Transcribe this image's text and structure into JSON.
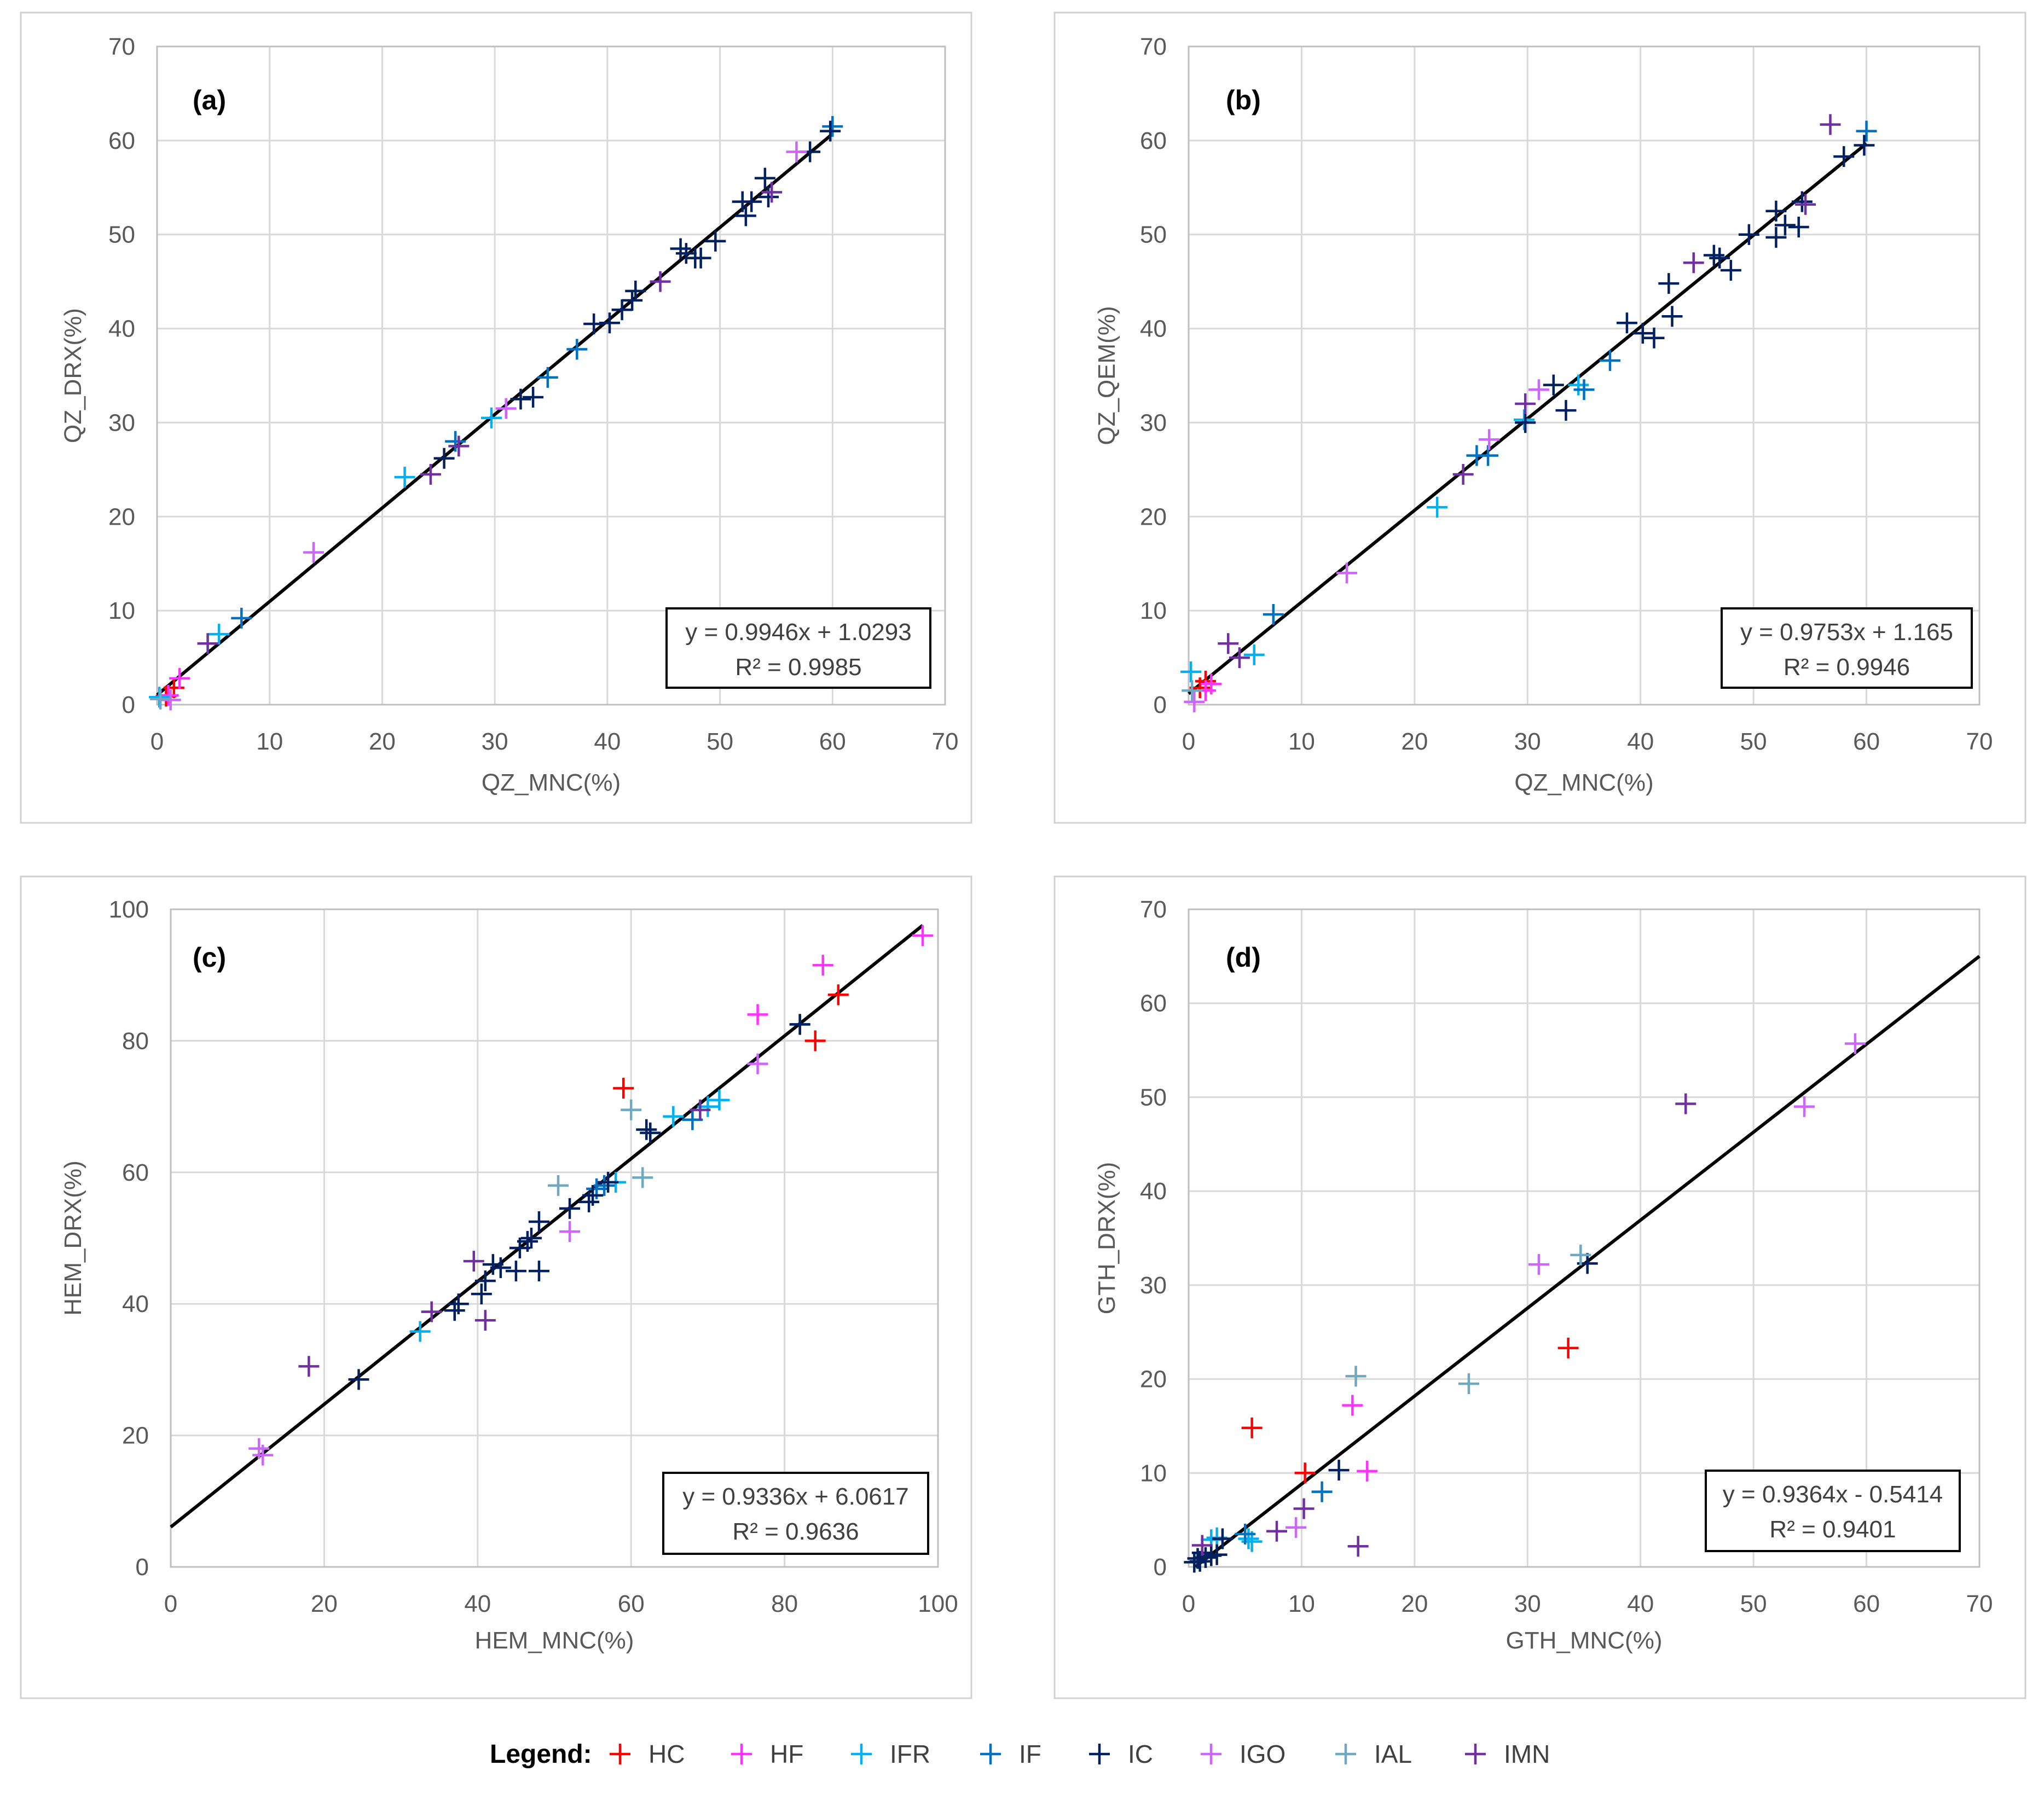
{
  "legend": {
    "title": "Legend:",
    "groups": [
      {
        "id": "HC",
        "label": "HC",
        "color": "#ff0000"
      },
      {
        "id": "HF",
        "label": "HF",
        "color": "#ff33ff"
      },
      {
        "id": "IFR",
        "label": "IFR",
        "color": "#00b0f0"
      },
      {
        "id": "IF",
        "label": "IF",
        "color": "#0070c0"
      },
      {
        "id": "IC",
        "label": "IC",
        "color": "#002060"
      },
      {
        "id": "IGO",
        "label": "IGO",
        "color": "#cc66ff"
      },
      {
        "id": "IAL",
        "label": "IAL",
        "color": "#6fa8c0"
      },
      {
        "id": "IMN",
        "label": "IMN",
        "color": "#7030a0"
      }
    ]
  },
  "chart_data": [
    {
      "type": "scatter",
      "panel": "(a)",
      "xlabel": "QZ_MNC(%)",
      "ylabel": "QZ_DRX(%)",
      "xlim": [
        0,
        70
      ],
      "ylim": [
        0,
        70
      ],
      "xticks": [
        0,
        10,
        20,
        30,
        40,
        50,
        60,
        70
      ],
      "yticks": [
        0,
        10,
        20,
        30,
        40,
        50,
        60,
        70
      ],
      "trendline": {
        "slope": 0.9946,
        "intercept": 1.0293,
        "x_range": [
          0,
          60
        ]
      },
      "equation": "y = 0.9946x + 1.0293",
      "r2": "R² = 0.9985",
      "series": [
        {
          "group": "HC",
          "points": [
            [
              1.5,
              1.8
            ],
            [
              0.8,
              0.9
            ]
          ]
        },
        {
          "group": "HF",
          "points": [
            [
              1.0,
              1.0
            ],
            [
              2.0,
              2.8
            ]
          ]
        },
        {
          "group": "IFR",
          "points": [
            [
              0.2,
              0.8
            ],
            [
              5.5,
              7.5
            ],
            [
              22.0,
              24.2
            ],
            [
              29.7,
              30.5
            ]
          ]
        },
        {
          "group": "IF",
          "points": [
            [
              7.5,
              9.2
            ],
            [
              26.5,
              28.0
            ],
            [
              34.7,
              34.8
            ],
            [
              37.3,
              37.8
            ],
            [
              60.0,
              61.5
            ]
          ]
        },
        {
          "group": "IC",
          "points": [
            [
              25.5,
              26.2
            ],
            [
              32.3,
              32.5
            ],
            [
              33.4,
              32.7
            ],
            [
              38.8,
              40.5
            ],
            [
              40.2,
              40.6
            ],
            [
              41.3,
              42.0
            ],
            [
              42.5,
              44.0
            ],
            [
              42.2,
              43.0
            ],
            [
              46.5,
              48.5
            ],
            [
              47.0,
              48.0
            ],
            [
              48.3,
              47.5
            ],
            [
              47.8,
              47.5
            ],
            [
              49.6,
              49.3
            ],
            [
              52.0,
              53.5
            ],
            [
              52.3,
              52.0
            ],
            [
              52.8,
              53.5
            ],
            [
              54.0,
              56.0
            ],
            [
              54.3,
              54.0
            ],
            [
              58.0,
              58.8
            ],
            [
              59.8,
              61.0
            ]
          ]
        },
        {
          "group": "IGO",
          "points": [
            [
              13.9,
              16.2
            ],
            [
              31.0,
              31.5
            ],
            [
              56.8,
              58.8
            ],
            [
              1.2,
              0.5
            ]
          ]
        },
        {
          "group": "IAL",
          "points": [
            [
              0.3,
              0.6
            ]
          ]
        },
        {
          "group": "IMN",
          "points": [
            [
              4.5,
              6.5
            ],
            [
              24.3,
              24.5
            ],
            [
              26.8,
              27.5
            ],
            [
              44.7,
              45.0
            ],
            [
              54.6,
              54.5
            ]
          ]
        }
      ]
    },
    {
      "type": "scatter",
      "panel": "(b)",
      "xlabel": "QZ_MNC(%)",
      "ylabel": "QZ_QEM(%)",
      "xlim": [
        0,
        70
      ],
      "ylim": [
        0,
        70
      ],
      "xticks": [
        0,
        10,
        20,
        30,
        40,
        50,
        60,
        70
      ],
      "yticks": [
        0,
        10,
        20,
        30,
        40,
        50,
        60,
        70
      ],
      "trendline": {
        "slope": 0.9753,
        "intercept": 1.165,
        "x_range": [
          0,
          60
        ]
      },
      "equation": "y = 0.9753x + 1.165",
      "r2": "R² = 0.9946",
      "series": [
        {
          "group": "HC",
          "points": [
            [
              1.5,
              2.5
            ],
            [
              1.0,
              1.8
            ]
          ]
        },
        {
          "group": "HF",
          "points": [
            [
              1.5,
              1.5
            ],
            [
              2.0,
              2.2
            ]
          ]
        },
        {
          "group": "IFR",
          "points": [
            [
              0.2,
              3.5
            ],
            [
              5.8,
              5.3
            ],
            [
              22.0,
              21.0
            ],
            [
              29.7,
              30.3
            ],
            [
              34.5,
              34.0
            ]
          ]
        },
        {
          "group": "IF",
          "points": [
            [
              7.5,
              9.6
            ],
            [
              25.5,
              26.5
            ],
            [
              26.5,
              26.5
            ],
            [
              35.0,
              33.5
            ],
            [
              37.3,
              36.6
            ],
            [
              60.0,
              61.0
            ]
          ]
        },
        {
          "group": "IC",
          "points": [
            [
              29.8,
              30.0
            ],
            [
              32.3,
              34.0
            ],
            [
              33.4,
              31.3
            ],
            [
              38.8,
              40.6
            ],
            [
              40.2,
              39.5
            ],
            [
              41.2,
              39.0
            ],
            [
              42.5,
              44.8
            ],
            [
              42.8,
              41.3
            ],
            [
              46.5,
              47.8
            ],
            [
              47.0,
              47.5
            ],
            [
              48.0,
              46.2
            ],
            [
              49.6,
              50.0
            ],
            [
              52.0,
              52.5
            ],
            [
              52.0,
              49.7
            ],
            [
              52.8,
              51.0
            ],
            [
              54.0,
              50.8
            ],
            [
              54.3,
              53.5
            ],
            [
              58.0,
              58.3
            ],
            [
              59.8,
              59.5
            ]
          ]
        },
        {
          "group": "IGO",
          "points": [
            [
              14.0,
              14.0
            ],
            [
              26.6,
              28.2
            ],
            [
              31.0,
              33.5
            ],
            [
              0.5,
              0.3
            ]
          ]
        },
        {
          "group": "IAL",
          "points": [
            [
              0.3,
              1.5
            ]
          ]
        },
        {
          "group": "IMN",
          "points": [
            [
              3.5,
              6.5
            ],
            [
              4.5,
              5.0
            ],
            [
              24.3,
              24.5
            ],
            [
              29.8,
              32.0
            ],
            [
              44.7,
              47.0
            ],
            [
              56.8,
              61.7
            ],
            [
              54.6,
              53.2
            ]
          ]
        }
      ]
    },
    {
      "type": "scatter",
      "panel": "(c)",
      "xlabel": "HEM_MNC(%)",
      "ylabel": "HEM_DRX(%)",
      "xlim": [
        0,
        100
      ],
      "ylim": [
        0,
        100
      ],
      "xticks": [
        0,
        20,
        40,
        60,
        80,
        100
      ],
      "yticks": [
        0,
        20,
        40,
        60,
        80,
        100
      ],
      "trendline": {
        "slope": 0.9336,
        "intercept": 6.0617,
        "x_range": [
          0,
          98
        ]
      },
      "equation": "y = 0.9336x + 6.0617",
      "r2": "R² = 0.9636",
      "series": [
        {
          "group": "HC",
          "points": [
            [
              59.0,
              72.8
            ],
            [
              84.0,
              80.0
            ],
            [
              87.0,
              87.0
            ]
          ]
        },
        {
          "group": "HF",
          "points": [
            [
              76.5,
              84.0
            ],
            [
              85.0,
              91.5
            ],
            [
              98.0,
              96.0
            ]
          ]
        },
        {
          "group": "IFR",
          "points": [
            [
              32.5,
              35.8
            ],
            [
              65.5,
              68.5
            ],
            [
              70.0,
              70.0
            ],
            [
              71.5,
              71.0
            ],
            [
              58.0,
              58.5
            ]
          ]
        },
        {
          "group": "IF",
          "points": [
            [
              55.5,
              57.5
            ],
            [
              68.0,
              68.0
            ],
            [
              82.0,
              82.5
            ],
            [
              56.5,
              58.0
            ]
          ]
        },
        {
          "group": "IC",
          "points": [
            [
              24.5,
              28.5
            ],
            [
              37.0,
              39.0
            ],
            [
              37.5,
              40.0
            ],
            [
              40.5,
              41.5
            ],
            [
              41.0,
              43.5
            ],
            [
              42.0,
              46.0
            ],
            [
              43.0,
              45.5
            ],
            [
              45.0,
              45.0
            ],
            [
              45.5,
              48.5
            ],
            [
              46.5,
              49.5
            ],
            [
              47.0,
              50.0
            ],
            [
              48.0,
              52.5
            ],
            [
              48.0,
              45.0
            ],
            [
              52.0,
              54.5
            ],
            [
              54.5,
              55.5
            ],
            [
              55.0,
              56.5
            ],
            [
              57.0,
              58.5
            ],
            [
              62.0,
              66.5
            ],
            [
              62.5,
              66.0
            ],
            [
              82.0,
              82.5
            ]
          ]
        },
        {
          "group": "IGO",
          "points": [
            [
              11.5,
              18.0
            ],
            [
              12.0,
              17.0
            ],
            [
              52.0,
              51.0
            ],
            [
              76.5,
              76.5
            ]
          ]
        },
        {
          "group": "IAL",
          "points": [
            [
              50.5,
              58.0
            ],
            [
              60.0,
              69.5
            ],
            [
              61.5,
              59.2
            ]
          ]
        },
        {
          "group": "IMN",
          "points": [
            [
              18.0,
              30.5
            ],
            [
              34.0,
              38.8
            ],
            [
              39.5,
              46.5
            ],
            [
              41.0,
              37.5
            ],
            [
              69.0,
              69.5
            ]
          ]
        }
      ]
    },
    {
      "type": "scatter",
      "panel": "(d)",
      "xlabel": "GTH_MNC(%)",
      "ylabel": "GTH_DRX(%)",
      "xlim": [
        0,
        70
      ],
      "ylim": [
        0,
        70
      ],
      "xticks": [
        0,
        10,
        20,
        30,
        40,
        50,
        60,
        70
      ],
      "yticks": [
        0,
        10,
        20,
        30,
        40,
        50,
        60,
        70
      ],
      "trendline": {
        "slope": 0.9364,
        "intercept": -0.5414,
        "x_range": [
          0.6,
          70
        ]
      },
      "equation": "y = 0.9364x - 0.5414",
      "r2": "R² = 0.9401",
      "series": [
        {
          "group": "HC",
          "points": [
            [
              5.6,
              14.8
            ],
            [
              10.3,
              10.0
            ],
            [
              33.6,
              23.3
            ]
          ]
        },
        {
          "group": "HF",
          "points": [
            [
              14.5,
              17.2
            ],
            [
              15.8,
              10.2
            ]
          ]
        },
        {
          "group": "IFR",
          "points": [
            [
              2.0,
              2.9
            ],
            [
              2.5,
              3.1
            ],
            [
              5.3,
              3.0
            ],
            [
              5.6,
              2.7
            ]
          ]
        },
        {
          "group": "IF",
          "points": [
            [
              5.0,
              3.5
            ],
            [
              11.8,
              8.0
            ]
          ]
        },
        {
          "group": "IC",
          "points": [
            [
              0.5,
              0.5
            ],
            [
              0.8,
              0.9
            ],
            [
              1.0,
              0.6
            ],
            [
              1.2,
              1.5
            ],
            [
              1.5,
              1.0
            ],
            [
              2.0,
              1.2
            ],
            [
              2.5,
              1.3
            ],
            [
              3.0,
              3.0
            ],
            [
              13.3,
              10.3
            ],
            [
              35.3,
              32.3
            ]
          ]
        },
        {
          "group": "IGO",
          "points": [
            [
              9.5,
              4.2
            ],
            [
              31.0,
              32.2
            ],
            [
              54.5,
              49.0
            ],
            [
              59.0,
              55.7
            ]
          ]
        },
        {
          "group": "IAL",
          "points": [
            [
              14.8,
              20.3
            ],
            [
              24.8,
              19.5
            ],
            [
              34.7,
              33.2
            ]
          ]
        },
        {
          "group": "IMN",
          "points": [
            [
              1.2,
              2.3
            ],
            [
              7.8,
              3.8
            ],
            [
              10.2,
              6.2
            ],
            [
              15.0,
              2.2
            ],
            [
              44.0,
              49.3
            ]
          ]
        }
      ]
    }
  ]
}
